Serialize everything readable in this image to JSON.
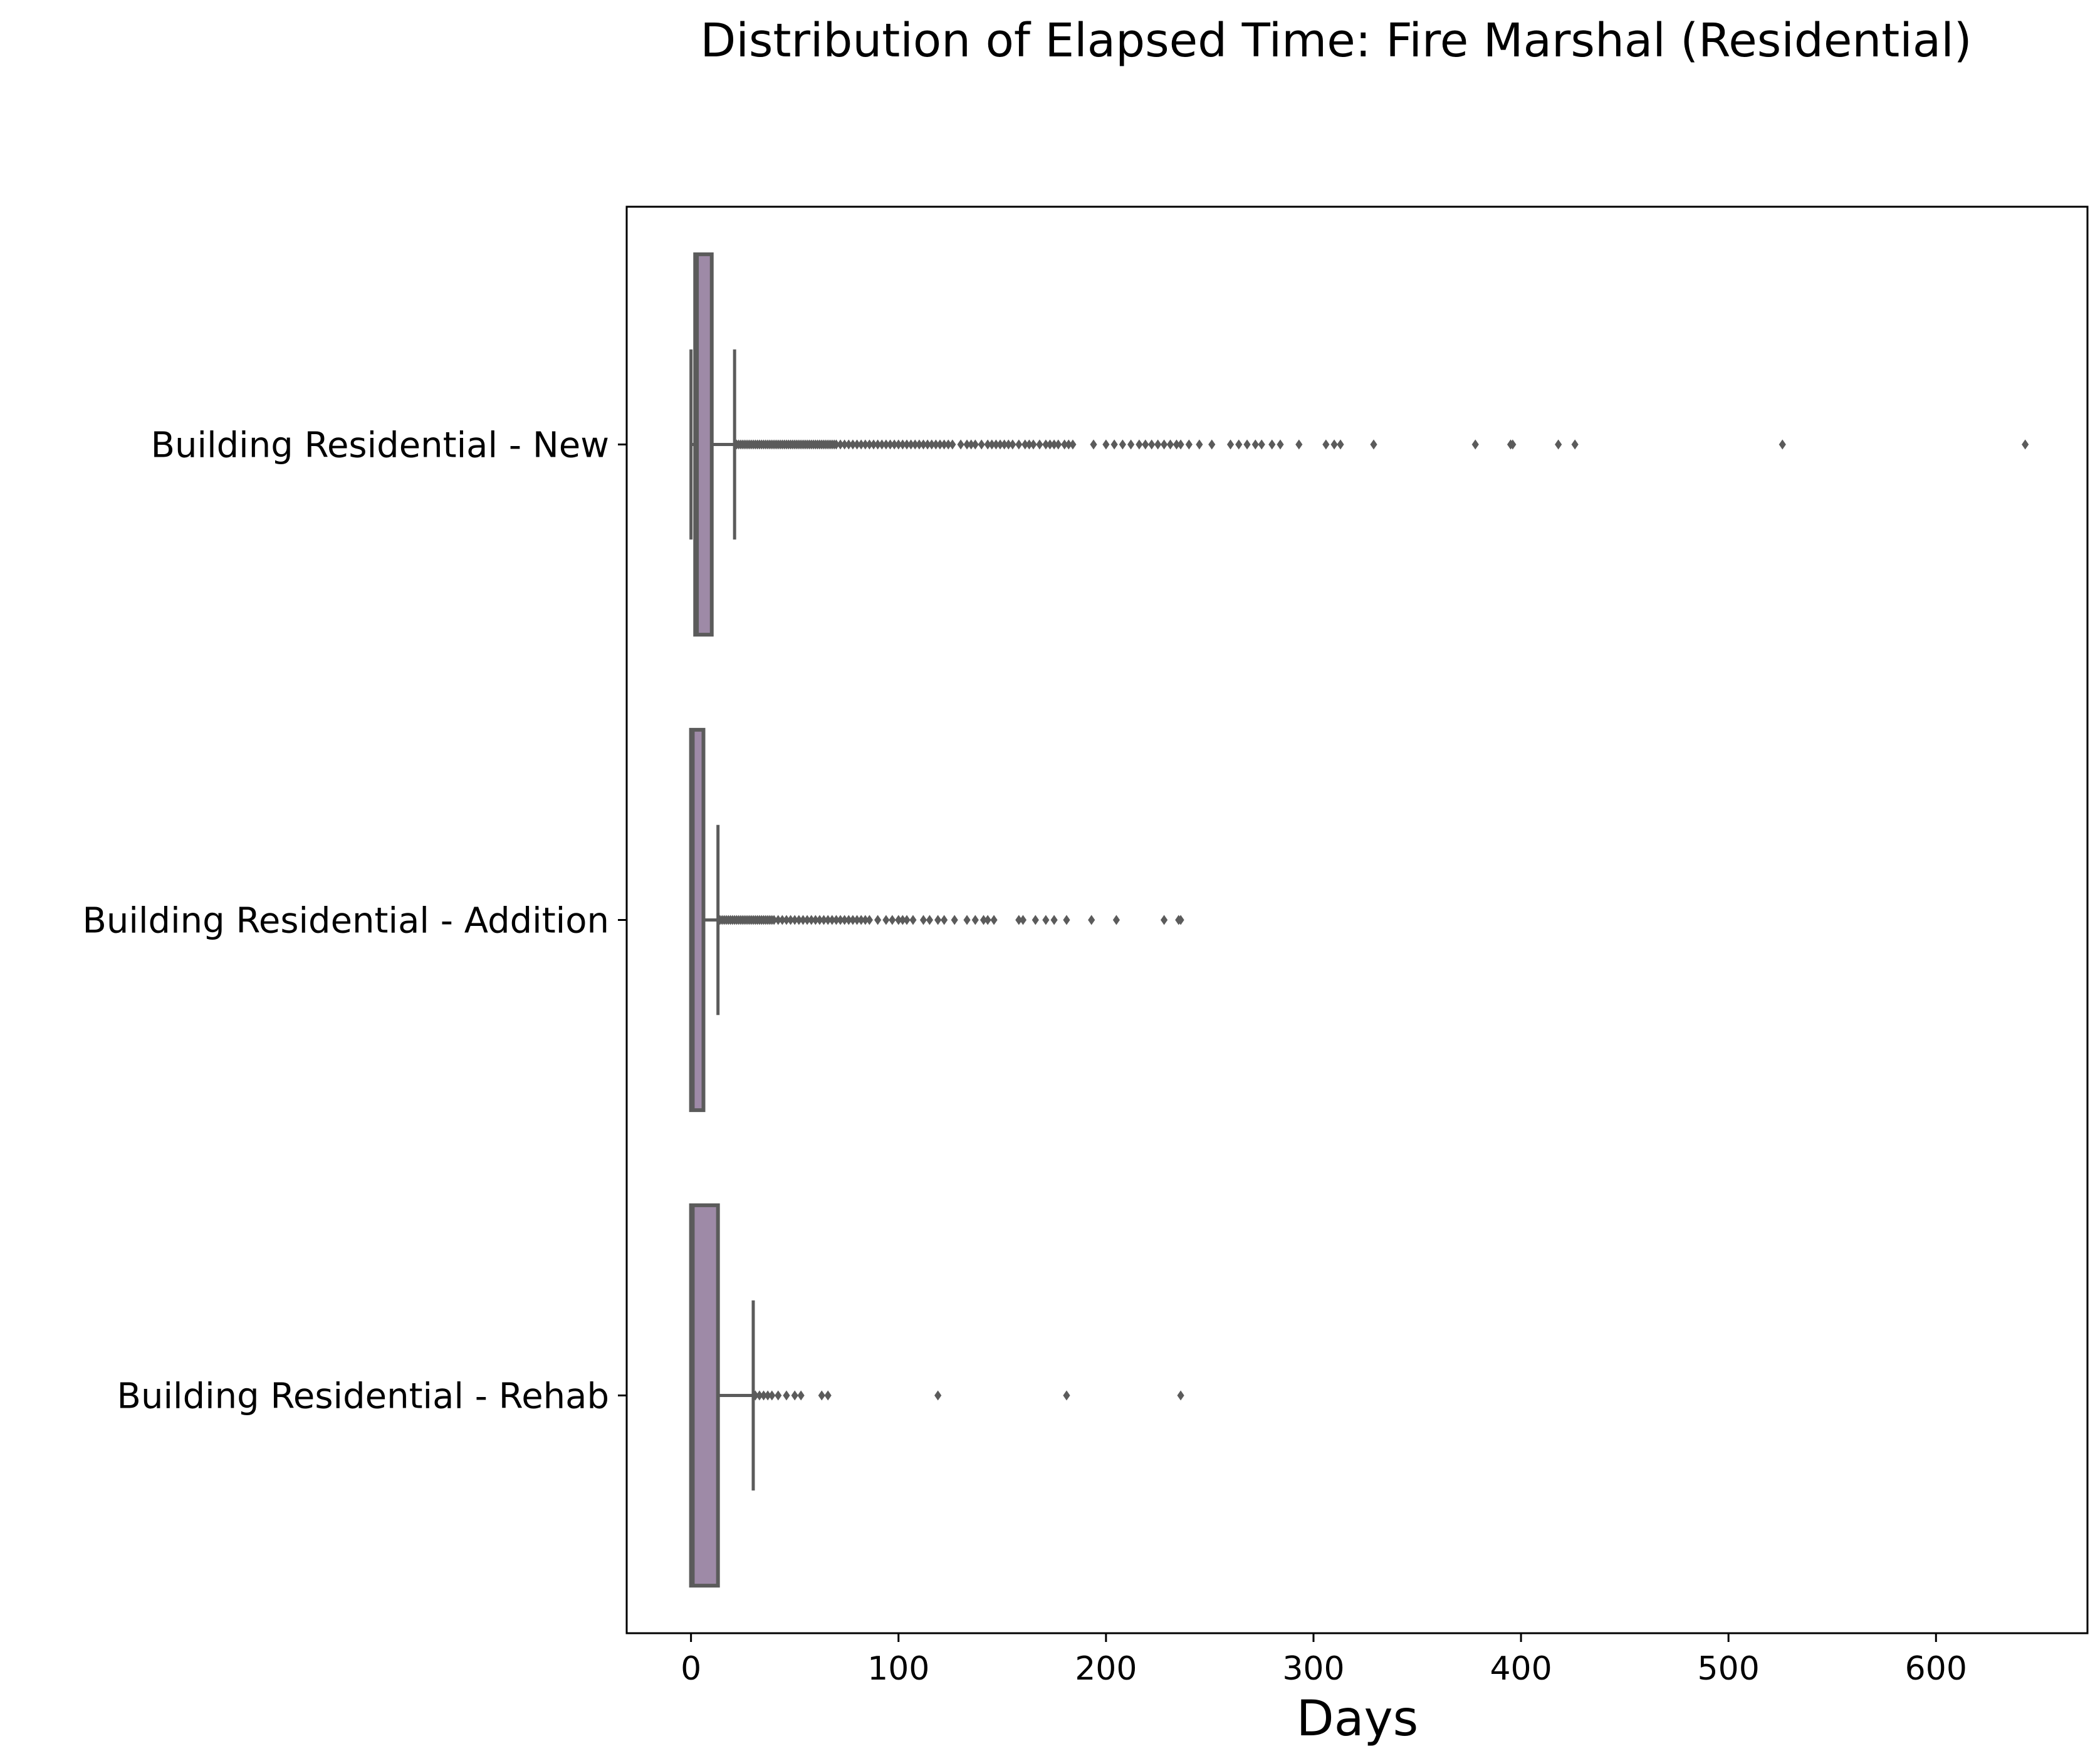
{
  "chart_data": {
    "type": "box",
    "orientation": "horizontal",
    "title": "Distribution of Elapsed Time: Fire Marshal (Residential)",
    "xlabel": "Days",
    "ylabel": "",
    "xlim": [
      -31,
      673
    ],
    "xticks": [
      0,
      100,
      200,
      300,
      400,
      500,
      600
    ],
    "xtick_labels": [
      "0",
      "100",
      "200",
      "300",
      "400",
      "500",
      "600"
    ],
    "grid": false,
    "colors": {
      "box_fill": "#9e8aa7",
      "line": "#5b5b5b",
      "frame": "#000000"
    },
    "categories": [
      "Building Residential - New",
      "Building Residential - Addition",
      "Building Residential - Rehab"
    ],
    "boxes": [
      {
        "category": "Building Residential - New",
        "whisker_low": 0,
        "q1": 2,
        "median": 3,
        "q3": 10,
        "whisker_high": 21,
        "outliers": [
          22,
          23,
          24,
          25,
          26,
          27,
          28,
          29,
          30,
          31,
          32,
          33,
          34,
          35,
          36,
          37,
          38,
          39,
          40,
          41,
          42,
          43,
          44,
          45,
          46,
          47,
          48,
          49,
          50,
          51,
          52,
          53,
          54,
          55,
          56,
          57,
          58,
          59,
          60,
          61,
          62,
          63,
          64,
          65,
          66,
          67,
          68,
          69,
          70,
          72,
          74,
          76,
          78,
          80,
          82,
          84,
          86,
          88,
          90,
          92,
          94,
          96,
          98,
          100,
          102,
          104,
          106,
          108,
          110,
          112,
          114,
          116,
          118,
          120,
          122,
          124,
          126,
          130,
          133,
          135,
          137,
          140,
          143,
          145,
          147,
          149,
          151,
          153,
          155,
          158,
          161,
          163,
          165,
          168,
          171,
          173,
          175,
          177,
          180,
          182,
          184,
          194,
          200,
          204,
          208,
          212,
          216,
          219,
          222,
          225,
          228,
          231,
          234,
          236,
          240,
          245,
          251,
          260,
          264,
          268,
          272,
          275,
          280,
          284,
          293,
          306,
          310,
          313,
          329,
          378,
          395,
          396,
          418,
          426,
          526,
          643
        ]
      },
      {
        "category": "Building Residential - Addition",
        "whisker_low": 0,
        "q1": 0,
        "median": 1,
        "q3": 6,
        "whisker_high": 13,
        "outliers": [
          14,
          15,
          16,
          17,
          18,
          19,
          20,
          21,
          22,
          23,
          24,
          25,
          26,
          27,
          28,
          29,
          30,
          31,
          32,
          33,
          34,
          35,
          36,
          37,
          38,
          39,
          40,
          42,
          44,
          46,
          48,
          50,
          52,
          54,
          56,
          58,
          60,
          62,
          64,
          66,
          68,
          70,
          72,
          74,
          76,
          78,
          80,
          82,
          84,
          86,
          90,
          94,
          97,
          100,
          102,
          104,
          107,
          112,
          115,
          119,
          122,
          127,
          133,
          137,
          141,
          143,
          146,
          158,
          160,
          166,
          171,
          175,
          181,
          193,
          205,
          228,
          235,
          236
        ]
      },
      {
        "category": "Building Residential - Rehab",
        "whisker_low": 0,
        "q1": 0,
        "median": 1,
        "q3": 13,
        "whisker_high": 30,
        "outliers": [
          31,
          33,
          35,
          37,
          39,
          42,
          46,
          50,
          53,
          63,
          66,
          119,
          181,
          236
        ]
      }
    ]
  }
}
